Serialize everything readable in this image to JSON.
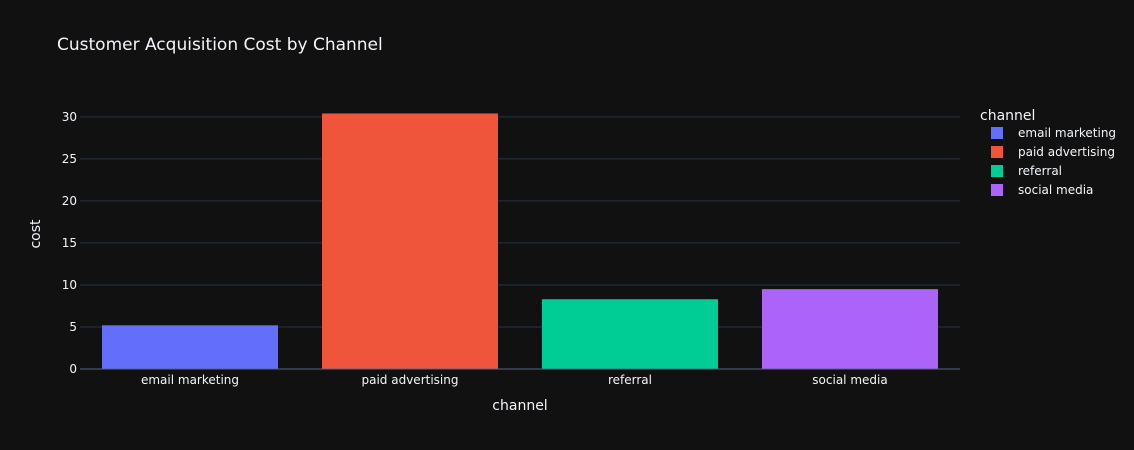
{
  "chart_data": {
    "type": "bar",
    "title": "Customer Acquisition Cost by Channel",
    "xlabel": "channel",
    "ylabel": "cost",
    "categories": [
      "email marketing",
      "paid advertising",
      "referral",
      "social media"
    ],
    "values": [
      5.2,
      30.4,
      8.3,
      9.5
    ],
    "colors": [
      "#636efa",
      "#ef553b",
      "#00cc96",
      "#ab63fa"
    ],
    "ylim": [
      0,
      32
    ],
    "yticks": [
      0,
      5,
      10,
      15,
      20,
      25,
      30
    ],
    "grid": true,
    "legend": {
      "title": "channel",
      "placement": "top-right",
      "entries": [
        "email marketing",
        "paid advertising",
        "referral",
        "social media"
      ]
    }
  },
  "theme": {
    "background": "#111111",
    "grid": "#283442",
    "text": "#f2f5fa",
    "axis_line": "#506784"
  }
}
